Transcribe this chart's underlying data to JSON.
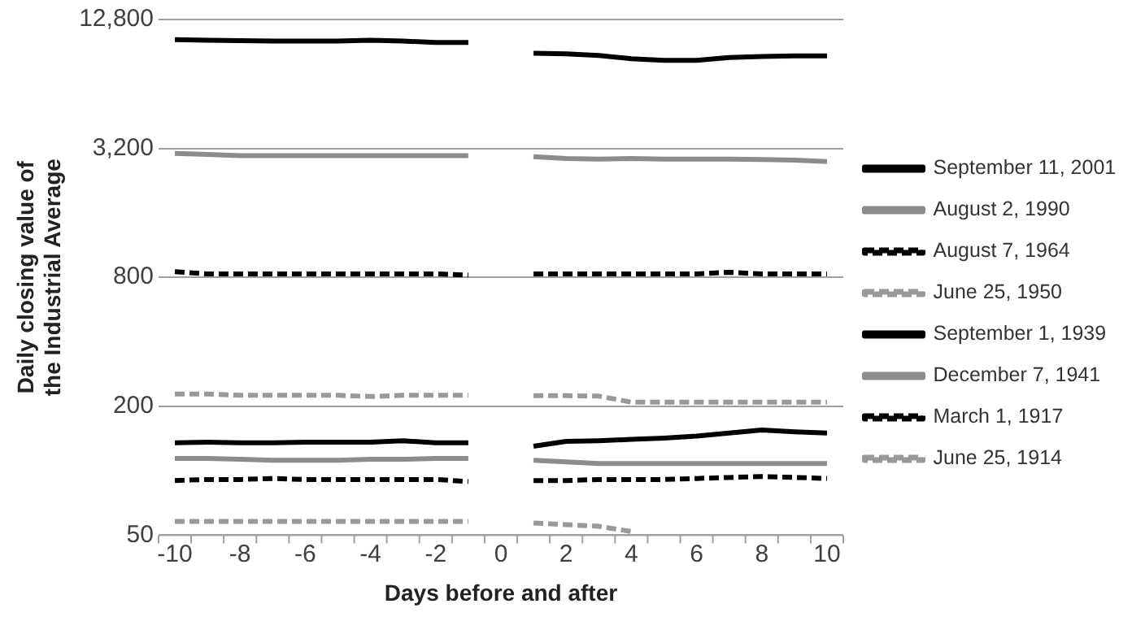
{
  "chart_data": {
    "type": "line",
    "xlabel": "Days before and after",
    "ylabel": "Daily closing value of the Industrial Average",
    "x": [
      -10,
      -9,
      -8,
      -7,
      -6,
      -5,
      -4,
      -3,
      -2,
      -1,
      0,
      1,
      2,
      3,
      4,
      5,
      6,
      7,
      8,
      9,
      10
    ],
    "xlim": [
      -10.5,
      10.5
    ],
    "xticks": [
      -10,
      -8,
      -6,
      -4,
      -2,
      0,
      2,
      4,
      6,
      8,
      10
    ],
    "log": true,
    "ylim": [
      50,
      12800
    ],
    "yticks": [
      50,
      200,
      800,
      {
        "value": 3200,
        "label": "3,200"
      },
      {
        "value": 12800,
        "label": "12,800"
      }
    ],
    "grid": "y",
    "legend": "right",
    "marker": "none",
    "series": [
      {
        "name": "September 11, 2001",
        "color": "#000000",
        "line_style": "solid",
        "values": [
          10300,
          10250,
          10200,
          10150,
          10150,
          10150,
          10250,
          10150,
          10000,
          10000,
          null,
          8900,
          8850,
          8700,
          8400,
          8250,
          8250,
          8500,
          8600,
          8650,
          8650
        ]
      },
      {
        "name": "August 2, 1990",
        "color": "#8c8c8c",
        "line_style": "solid",
        "values": [
          3030,
          3000,
          2960,
          2960,
          2960,
          2960,
          2960,
          2960,
          2960,
          2960,
          null,
          2930,
          2870,
          2850,
          2870,
          2850,
          2850,
          2850,
          2840,
          2820,
          2780
        ]
      },
      {
        "name": "August 7, 1964",
        "color": "#000000",
        "line_style": "dashed",
        "values": [
          850,
          830,
          830,
          830,
          830,
          830,
          830,
          830,
          830,
          820,
          null,
          830,
          830,
          830,
          830,
          830,
          830,
          845,
          830,
          830,
          830
        ]
      },
      {
        "name": "June 25, 1950",
        "color": "#999999",
        "line_style": "dashed",
        "values": [
          228,
          228,
          225,
          225,
          225,
          225,
          222,
          225,
          225,
          225,
          null,
          224,
          224,
          223,
          209,
          209,
          209,
          209,
          209,
          209,
          209
        ]
      },
      {
        "name": "September 1, 1939",
        "color": "#000000",
        "line_style": "solid",
        "values": [
          135,
          136,
          135,
          135,
          136,
          136,
          136,
          138,
          135,
          135,
          null,
          130,
          137,
          138,
          140,
          142,
          145,
          150,
          155,
          152,
          150
        ]
      },
      {
        "name": "December 7, 1941",
        "color": "#8c8c8c",
        "line_style": "solid",
        "values": [
          114,
          114,
          113,
          112,
          112,
          112,
          113,
          113,
          114,
          114,
          null,
          112,
          110,
          108,
          108,
          108,
          108,
          108,
          108,
          108,
          108
        ]
      },
      {
        "name": "March 1, 1917",
        "color": "#000000",
        "line_style": "dashed",
        "values": [
          90,
          91,
          91,
          92,
          91,
          91,
          91,
          91,
          91,
          89,
          null,
          90,
          90,
          91,
          91,
          91,
          92,
          93,
          94,
          93,
          92
        ]
      },
      {
        "name": "June 25, 1914",
        "color": "#999999",
        "line_style": "dashed",
        "values": [
          58,
          58,
          58,
          58,
          58,
          58,
          58,
          58,
          58,
          58,
          null,
          57,
          56,
          55,
          52,
          null,
          null,
          null,
          null,
          null,
          null
        ]
      }
    ]
  }
}
